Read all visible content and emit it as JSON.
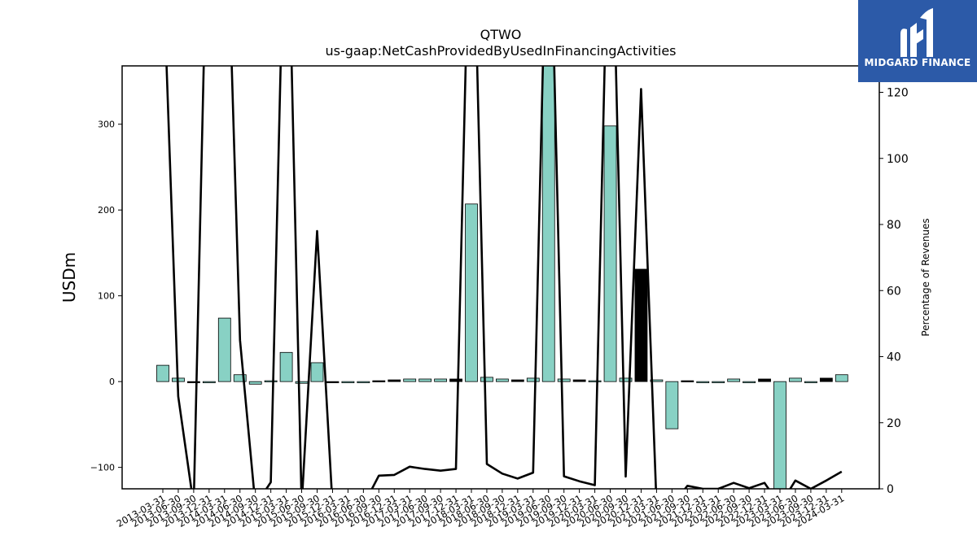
{
  "brand": {
    "name": "MIDGARD FINANCE",
    "color": "#2c5aa8"
  },
  "chart_data": {
    "type": "bar",
    "title": "QTWO",
    "subtitle": "us-gaap:NetCashProvidedByUsedInFinancingActivities",
    "ylabel": "USDm",
    "y2label": "Percentage of Revenues",
    "ylim": [
      -125,
      368
    ],
    "y2lim": [
      0,
      128
    ],
    "yticks": [
      -100,
      0,
      100,
      200,
      300
    ],
    "y2ticks": [
      0,
      20,
      40,
      60,
      80,
      100,
      120
    ],
    "bar_color": "#88d1c4",
    "highlight_color": "#000000",
    "line_color": "#000000",
    "grid": false,
    "categories": [
      "2013-03-31",
      "2013-06-30",
      "2013-09-30",
      "2013-12-31",
      "2014-03-31",
      "2014-06-30",
      "2014-09-30",
      "2014-12-31",
      "2015-03-31",
      "2015-06-30",
      "2015-09-30",
      "2015-12-31",
      "2016-03-31",
      "2016-06-30",
      "2016-09-30",
      "2016-12-31",
      "2017-03-31",
      "2017-06-30",
      "2017-09-30",
      "2017-12-31",
      "2018-03-31",
      "2018-06-30",
      "2018-09-30",
      "2018-12-31",
      "2019-03-31",
      "2019-06-30",
      "2019-09-30",
      "2019-12-31",
      "2020-03-31",
      "2020-06-30",
      "2020-09-30",
      "2020-12-31",
      "2021-03-31",
      "2021-06-30",
      "2021-09-30",
      "2021-12-31",
      "2022-03-31",
      "2022-06-30",
      "2022-09-30",
      "2022-12-31",
      "2023-03-31",
      "2023-06-30",
      "2023-09-30",
      "2023-12-31",
      "2024-03-31"
    ],
    "values": [
      19,
      4,
      -1,
      0,
      74,
      8,
      -3,
      1,
      34,
      -2,
      22,
      -1,
      -1,
      -1,
      1,
      2,
      3,
      3,
      3,
      3,
      207,
      5,
      3,
      2,
      4,
      380,
      3,
      2,
      1,
      298,
      4,
      131,
      2,
      -55,
      1,
      -1,
      -1,
      3,
      -1,
      3,
      -125,
      4,
      -1,
      4,
      8
    ],
    "highlight": [
      false,
      false,
      true,
      false,
      false,
      false,
      false,
      false,
      false,
      false,
      false,
      true,
      false,
      false,
      true,
      true,
      false,
      false,
      false,
      true,
      false,
      false,
      false,
      true,
      false,
      false,
      false,
      true,
      false,
      false,
      false,
      true,
      false,
      false,
      true,
      false,
      false,
      false,
      false,
      true,
      false,
      false,
      false,
      true,
      false
    ],
    "percent_of_revenue": [
      160,
      28,
      -5,
      200,
      200,
      45,
      -5,
      2,
      200,
      -5,
      78,
      -5,
      -5,
      -5,
      4,
      4.2,
      6.7,
      6,
      5.5,
      6,
      200,
      7.5,
      4.6,
      3.1,
      4.9,
      200,
      3.8,
      2.3,
      1.1,
      200,
      3.7,
      121,
      -5,
      -5,
      0.9,
      0,
      0,
      1.8,
      0.2,
      1.8,
      -5,
      2.5,
      0,
      2.5,
      5.2
    ]
  }
}
